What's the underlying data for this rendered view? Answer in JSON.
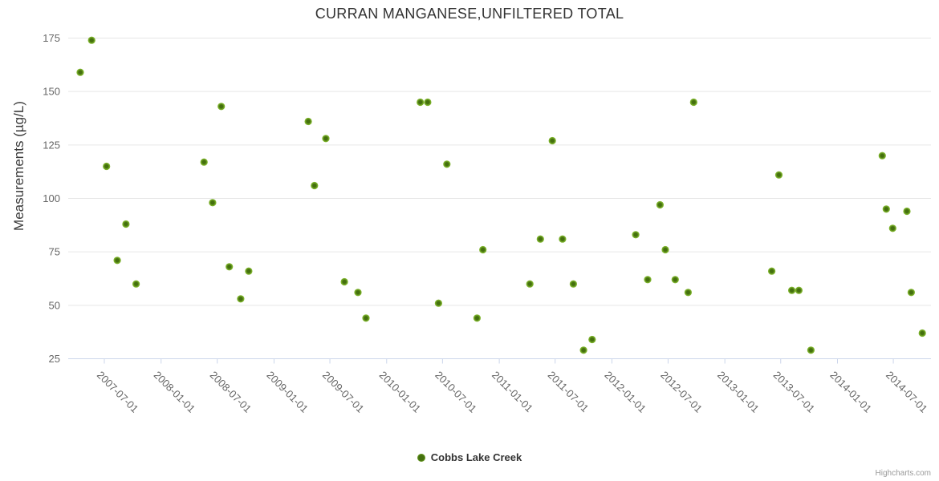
{
  "credits": "Highcharts.com",
  "colors": {
    "marker_center": "#44700e",
    "marker_edge": "#7db32b",
    "grid_line": "#e6e6e6",
    "axis_line": "#ccd6eb",
    "tick_label": "#666666",
    "title_text": "#333333"
  },
  "chart_data": {
    "type": "scatter",
    "title": "CURRAN MANGANESE,UNFILTERED TOTAL",
    "xlabel": "",
    "ylabel": "Measurements (µg/L)",
    "ylim": [
      25,
      175
    ],
    "y_ticks": [
      25,
      50,
      75,
      100,
      125,
      150,
      175
    ],
    "xlim": [
      "2007-03-06",
      "2014-10-31"
    ],
    "x_ticks": [
      "2007-07-01",
      "2008-01-01",
      "2008-07-01",
      "2009-01-01",
      "2009-07-01",
      "2010-01-01",
      "2010-07-01",
      "2011-01-01",
      "2011-07-01",
      "2012-01-01",
      "2012-07-01",
      "2013-01-01",
      "2013-07-01",
      "2014-01-01",
      "2014-07-01"
    ],
    "grid": true,
    "legend_position": "bottom-center",
    "series": [
      {
        "name": "Cobbs Lake Creek",
        "points": [
          [
            "2007-04-14",
            159
          ],
          [
            "2007-05-21",
            174
          ],
          [
            "2007-07-08",
            115
          ],
          [
            "2007-08-12",
            71
          ],
          [
            "2007-09-09",
            88
          ],
          [
            "2007-10-12",
            60
          ],
          [
            "2008-05-19",
            117
          ],
          [
            "2008-06-16",
            98
          ],
          [
            "2008-07-14",
            143
          ],
          [
            "2008-08-09",
            68
          ],
          [
            "2008-09-15",
            53
          ],
          [
            "2008-10-11",
            66
          ],
          [
            "2009-04-22",
            136
          ],
          [
            "2009-05-12",
            106
          ],
          [
            "2009-06-18",
            128
          ],
          [
            "2009-08-17",
            61
          ],
          [
            "2009-09-30",
            56
          ],
          [
            "2009-10-26",
            44
          ],
          [
            "2010-04-20",
            145
          ],
          [
            "2010-05-14",
            145
          ],
          [
            "2010-06-18",
            51
          ],
          [
            "2010-07-15",
            116
          ],
          [
            "2010-10-21",
            44
          ],
          [
            "2010-11-09",
            76
          ],
          [
            "2011-04-10",
            60
          ],
          [
            "2011-05-14",
            81
          ],
          [
            "2011-06-22",
            127
          ],
          [
            "2011-07-25",
            81
          ],
          [
            "2011-08-29",
            60
          ],
          [
            "2011-10-01",
            29
          ],
          [
            "2011-10-29",
            34
          ],
          [
            "2012-03-18",
            83
          ],
          [
            "2012-04-26",
            62
          ],
          [
            "2012-06-05",
            97
          ],
          [
            "2012-06-22",
            76
          ],
          [
            "2012-07-24",
            62
          ],
          [
            "2012-09-04",
            56
          ],
          [
            "2012-09-22",
            145
          ],
          [
            "2013-06-02",
            66
          ],
          [
            "2013-06-25",
            111
          ],
          [
            "2013-08-06",
            57
          ],
          [
            "2013-08-29",
            57
          ],
          [
            "2013-10-07",
            29
          ],
          [
            "2014-05-26",
            120
          ],
          [
            "2014-06-08",
            95
          ],
          [
            "2014-06-29",
            86
          ],
          [
            "2014-08-14",
            94
          ],
          [
            "2014-08-28",
            56
          ],
          [
            "2014-10-03",
            37
          ]
        ]
      }
    ]
  }
}
